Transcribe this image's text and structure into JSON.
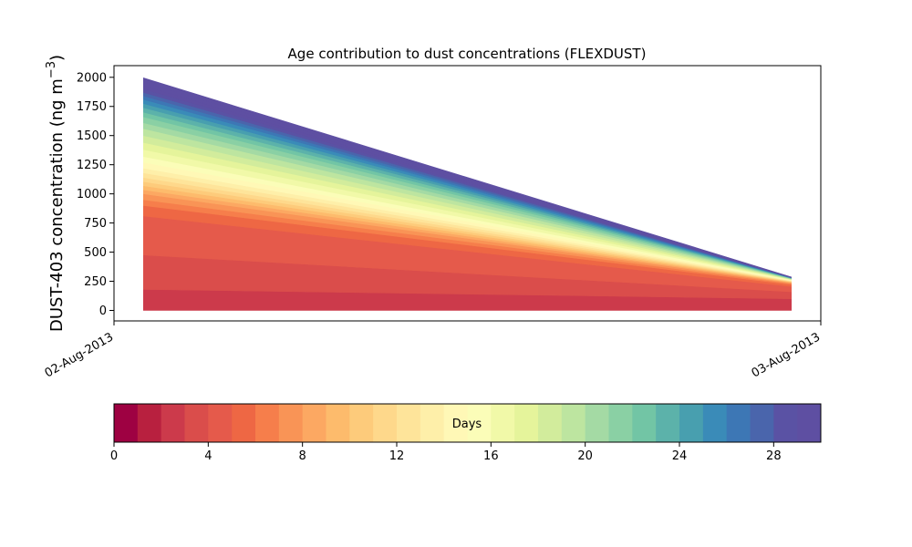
{
  "chart_data": {
    "type": "area",
    "title": "Age contribution to dust concentrations (FLEXDUST)",
    "ylabel": "DUST-403 concentration (ng m⁻³)",
    "ylabel_main": "DUST-403 concentration (ng m",
    "ylabel_sup": "−3",
    "ylabel_close": ")",
    "ylim": [
      -90,
      2100
    ],
    "yticks": [
      0,
      250,
      500,
      750,
      1000,
      1250,
      1500,
      1750,
      2000
    ],
    "xlim": [
      "2013-08-02 00:00",
      "2013-08-03 00:00"
    ],
    "xtick_labels": [
      "02-Aug-2013",
      "03-Aug-2013"
    ],
    "x": [
      "2013-08-02 01:00",
      "2013-08-02 23:00"
    ],
    "stacked_totals_start": [
      180,
      475,
      810,
      900,
      950,
      1000,
      1035,
      1070,
      1105,
      1140,
      1180,
      1220,
      1270,
      1320,
      1380,
      1440,
      1500,
      1560,
      1610,
      1660,
      1700,
      1740,
      1775,
      1810,
      1840,
      1870,
      1900,
      1930,
      1960,
      1995
    ],
    "stacked_totals_end": [
      100,
      160,
      205,
      222,
      230,
      236,
      240,
      244,
      247,
      250,
      253,
      256,
      259,
      262,
      265,
      267,
      269,
      271,
      273,
      275,
      277,
      278,
      279,
      280,
      281,
      282,
      283,
      284,
      285,
      287
    ],
    "colorbar": {
      "label": "Days",
      "range": [
        0,
        30
      ],
      "ticks": [
        0,
        4,
        8,
        12,
        16,
        20,
        24,
        28
      ],
      "colormap": "Spectral",
      "colors": [
        "#9e0142",
        "#b8203f",
        "#cc3a4b",
        "#da4d4b",
        "#e55a4b",
        "#ee6744",
        "#f67e4b",
        "#f99456",
        "#fca862",
        "#fdbb6c",
        "#fdcb7b",
        "#fed88b",
        "#fee49a",
        "#feefa9",
        "#fff8b6",
        "#fbfdb8",
        "#f1f9a8",
        "#e5f49b",
        "#d2ec9c",
        "#bde5a0",
        "#a4da a4",
        "#8ad0a4",
        "#72c5a5",
        "#5cb2aa",
        "#489faf",
        "#3a8bb8",
        "#3d77b5",
        "#4a65ac",
        "#5a52a4",
        "#5e4fa2"
      ]
    }
  }
}
